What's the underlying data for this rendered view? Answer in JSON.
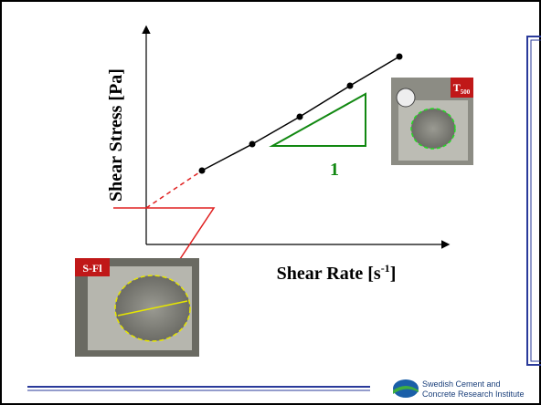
{
  "y_axis_label": "Shear Stress [Pa]",
  "x_axis_label": {
    "text": "Shear Rate [s",
    "superscript": "-1",
    "close": "]"
  },
  "slope_label": "1",
  "photos": [
    {
      "label": {
        "text": "T",
        "subscript": "500"
      }
    },
    {
      "label": "S-Fl"
    }
  ],
  "logo": {
    "line1": "Swedish Cement and",
    "line2": "Concrete Research Institute"
  }
}
